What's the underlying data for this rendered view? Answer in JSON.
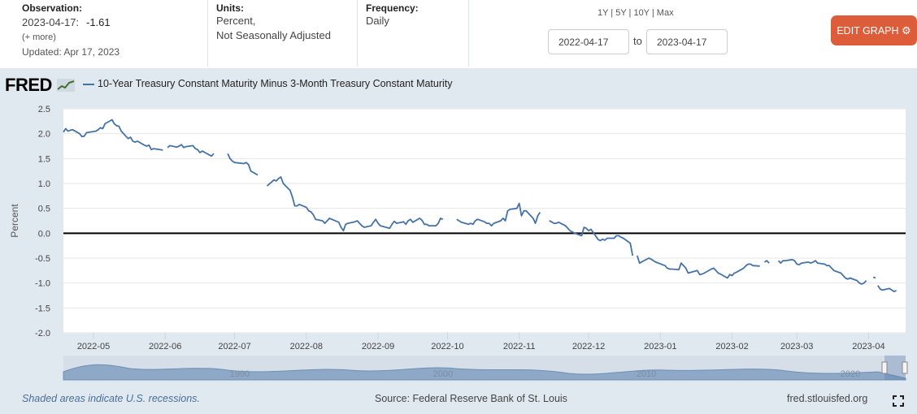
{
  "observation": {
    "label": "Observation:",
    "date": "2023-04-17:",
    "value": "-1.61",
    "more": "(+ more)",
    "updated": "Updated: Apr 17, 2023"
  },
  "units": {
    "label": "Units:",
    "line1": "Percent,",
    "line2": "Not Seasonally Adjusted"
  },
  "frequency": {
    "label": "Frequency:",
    "value": "Daily"
  },
  "range_links": "1Y | 5Y | 10Y | Max",
  "date_range": {
    "start": "2022-04-17",
    "to": "to",
    "end": "2023-04-17"
  },
  "edit_button": "EDIT GRAPH",
  "logo": "FRED",
  "colors": {
    "series": "#4572a7",
    "button": "#dd5d3b",
    "chart_bg": "#e1e9f0"
  },
  "footer": {
    "recession_note": "Shaded areas indicate U.S. recessions.",
    "source": "Source: Federal Reserve Bank of St. Louis",
    "site": "fred.stlouisfed.org"
  },
  "navigator_years": [
    "1990",
    "2000",
    "2010",
    "2020"
  ],
  "chart_data": {
    "type": "line",
    "title": "",
    "xlabel": "",
    "ylabel": "Percent",
    "ylim": [
      -2.0,
      2.5
    ],
    "yticks": [
      "2.5",
      "2.0",
      "1.5",
      "1.0",
      "0.5",
      "0.0",
      "-0.5",
      "-1.0",
      "-1.5",
      "-2.0"
    ],
    "xticks": [
      "2022-05",
      "2022-06",
      "2022-07",
      "2022-08",
      "2022-09",
      "2022-10",
      "2022-11",
      "2022-12",
      "2023-01",
      "2023-02",
      "2023-03",
      "2023-04"
    ],
    "xlim": [
      "2022-04-18",
      "2023-04-17"
    ],
    "zero_line": true,
    "legend": "top-left",
    "series": [
      {
        "name": "10-Year Treasury Constant Maturity Minus 3-Month Treasury Constant Maturity",
        "segments": [
          [
            [
              "2022-04-18",
              2.03
            ],
            [
              "2022-04-19",
              2.1
            ],
            [
              "2022-04-20",
              2.05
            ],
            [
              "2022-04-21",
              2.07
            ],
            [
              "2022-04-22",
              2.08
            ],
            [
              "2022-04-25",
              2.0
            ],
            [
              "2022-04-26",
              1.94
            ],
            [
              "2022-04-27",
              1.95
            ],
            [
              "2022-04-28",
              2.02
            ],
            [
              "2022-05-02",
              2.05
            ],
            [
              "2022-05-03",
              2.08
            ],
            [
              "2022-05-04",
              2.12
            ],
            [
              "2022-05-05",
              2.1
            ],
            [
              "2022-05-06",
              2.2
            ],
            [
              "2022-05-09",
              2.28
            ],
            [
              "2022-05-10",
              2.2
            ],
            [
              "2022-05-11",
              2.16
            ],
            [
              "2022-05-12",
              2.15
            ],
            [
              "2022-05-13",
              2.05
            ],
            [
              "2022-05-16",
              1.9
            ],
            [
              "2022-05-17",
              1.93
            ],
            [
              "2022-05-18",
              1.85
            ],
            [
              "2022-05-19",
              1.83
            ],
            [
              "2022-05-20",
              1.85
            ],
            [
              "2022-05-23",
              1.77
            ],
            [
              "2022-05-24",
              1.75
            ],
            [
              "2022-05-25",
              1.77
            ],
            [
              "2022-05-26",
              1.68
            ],
            [
              "2022-05-27",
              1.7
            ],
            [
              "2022-05-31",
              1.67
            ]
          ],
          [
            [
              "2022-06-02",
              1.72
            ],
            [
              "2022-06-03",
              1.76
            ],
            [
              "2022-06-06",
              1.73
            ],
            [
              "2022-06-07",
              1.75
            ],
            [
              "2022-06-08",
              1.78
            ],
            [
              "2022-06-09",
              1.72
            ],
            [
              "2022-06-10",
              1.74
            ],
            [
              "2022-06-13",
              1.76
            ],
            [
              "2022-06-14",
              1.7
            ],
            [
              "2022-06-15",
              1.68
            ],
            [
              "2022-06-16",
              1.62
            ],
            [
              "2022-06-17",
              1.65
            ],
            [
              "2022-06-21",
              1.55
            ],
            [
              "2022-06-22",
              1.6
            ]
          ],
          [
            [
              "2022-06-28",
              1.6
            ],
            [
              "2022-06-29",
              1.5
            ],
            [
              "2022-06-30",
              1.45
            ],
            [
              "2022-07-01",
              1.42
            ],
            [
              "2022-07-05",
              1.4
            ],
            [
              "2022-07-06",
              1.42
            ],
            [
              "2022-07-07",
              1.38
            ],
            [
              "2022-07-08",
              1.25
            ],
            [
              "2022-07-11",
              1.17
            ]
          ],
          [
            [
              "2022-07-15",
              0.95
            ],
            [
              "2022-07-18",
              1.07
            ],
            [
              "2022-07-19",
              1.05
            ],
            [
              "2022-07-20",
              1.1
            ],
            [
              "2022-07-21",
              1.13
            ],
            [
              "2022-07-22",
              1.0
            ],
            [
              "2022-07-25",
              0.86
            ],
            [
              "2022-07-26",
              0.72
            ],
            [
              "2022-07-27",
              0.55
            ],
            [
              "2022-07-28",
              0.55
            ],
            [
              "2022-07-29",
              0.58
            ],
            [
              "2022-08-01",
              0.52
            ],
            [
              "2022-08-02",
              0.45
            ],
            [
              "2022-08-03",
              0.43
            ],
            [
              "2022-08-04",
              0.37
            ],
            [
              "2022-08-05",
              0.28
            ],
            [
              "2022-08-08",
              0.25
            ],
            [
              "2022-08-09",
              0.2
            ],
            [
              "2022-08-10",
              0.25
            ],
            [
              "2022-08-11",
              0.3
            ],
            [
              "2022-08-12",
              0.28
            ],
            [
              "2022-08-15",
              0.22
            ],
            [
              "2022-08-16",
              0.12
            ],
            [
              "2022-08-17",
              0.05
            ],
            [
              "2022-08-18",
              0.18
            ],
            [
              "2022-08-19",
              0.2
            ],
            [
              "2022-08-22",
              0.23
            ],
            [
              "2022-08-23",
              0.25
            ],
            [
              "2022-08-24",
              0.2
            ],
            [
              "2022-08-25",
              0.15
            ],
            [
              "2022-08-26",
              0.12
            ],
            [
              "2022-08-29",
              0.15
            ],
            [
              "2022-08-30",
              0.22
            ],
            [
              "2022-08-31",
              0.28
            ],
            [
              "2022-09-01",
              0.2
            ],
            [
              "2022-09-02",
              0.15
            ],
            [
              "2022-09-06",
              0.1
            ],
            [
              "2022-09-07",
              0.18
            ],
            [
              "2022-09-08",
              0.24
            ],
            [
              "2022-09-09",
              0.2
            ],
            [
              "2022-09-12",
              0.23
            ],
            [
              "2022-09-13",
              0.18
            ],
            [
              "2022-09-14",
              0.25
            ],
            [
              "2022-09-15",
              0.28
            ],
            [
              "2022-09-16",
              0.22
            ],
            [
              "2022-09-19",
              0.3
            ],
            [
              "2022-09-20",
              0.26
            ],
            [
              "2022-09-21",
              0.18
            ],
            [
              "2022-09-22",
              0.18
            ],
            [
              "2022-09-23",
              0.15
            ],
            [
              "2022-09-26",
              0.15
            ],
            [
              "2022-09-27",
              0.2
            ],
            [
              "2022-09-28",
              0.3
            ],
            [
              "2022-09-29",
              0.28
            ]
          ],
          [
            [
              "2022-10-05",
              0.28
            ],
            [
              "2022-10-06",
              0.25
            ],
            [
              "2022-10-07",
              0.22
            ],
            [
              "2022-10-10",
              0.18
            ],
            [
              "2022-10-11",
              0.2
            ],
            [
              "2022-10-12",
              0.18
            ],
            [
              "2022-10-13",
              0.25
            ],
            [
              "2022-10-14",
              0.28
            ],
            [
              "2022-10-17",
              0.23
            ],
            [
              "2022-10-18",
              0.2
            ],
            [
              "2022-10-19",
              0.2
            ],
            [
              "2022-10-20",
              0.15
            ],
            [
              "2022-10-21",
              0.2
            ],
            [
              "2022-10-24",
              0.25
            ],
            [
              "2022-10-25",
              0.3
            ],
            [
              "2022-10-26",
              0.25
            ],
            [
              "2022-10-27",
              0.45
            ],
            [
              "2022-10-28",
              0.48
            ],
            [
              "2022-10-31",
              0.5
            ],
            [
              "2022-11-01",
              0.6
            ],
            [
              "2022-11-02",
              0.35
            ],
            [
              "2022-11-03",
              0.45
            ],
            [
              "2022-11-04",
              0.45
            ],
            [
              "2022-11-07",
              0.3
            ],
            [
              "2022-11-08",
              0.2
            ],
            [
              "2022-11-09",
              0.35
            ],
            [
              "2022-11-10",
              0.42
            ]
          ],
          [
            [
              "2022-11-14",
              0.25
            ],
            [
              "2022-11-15",
              0.23
            ],
            [
              "2022-11-16",
              0.2
            ],
            [
              "2022-11-17",
              0.2
            ],
            [
              "2022-11-18",
              0.22
            ],
            [
              "2022-11-21",
              0.15
            ],
            [
              "2022-11-22",
              0.1
            ],
            [
              "2022-11-23",
              0.05
            ],
            [
              "2022-11-25",
              0.0
            ],
            [
              "2022-11-28",
              -0.05
            ],
            [
              "2022-11-29",
              0.12
            ],
            [
              "2022-11-30",
              0.1
            ],
            [
              "2022-12-01",
              0.05
            ],
            [
              "2022-12-02",
              0.08
            ],
            [
              "2022-12-05",
              -0.12
            ],
            [
              "2022-12-06",
              -0.15
            ],
            [
              "2022-12-07",
              -0.12
            ],
            [
              "2022-12-08",
              -0.14
            ],
            [
              "2022-12-09",
              -0.1
            ],
            [
              "2022-12-12",
              -0.1
            ],
            [
              "2022-12-13",
              -0.05
            ],
            [
              "2022-12-14",
              -0.05
            ],
            [
              "2022-12-15",
              -0.08
            ],
            [
              "2022-12-16",
              -0.1
            ],
            [
              "2022-12-19",
              -0.2
            ],
            [
              "2022-12-20",
              -0.45
            ]
          ],
          [
            [
              "2022-12-22",
              -0.45
            ],
            [
              "2022-12-23",
              -0.6
            ],
            [
              "2022-12-27",
              -0.5
            ],
            [
              "2022-12-28",
              -0.52
            ],
            [
              "2022-12-29",
              -0.55
            ],
            [
              "2022-12-30",
              -0.58
            ],
            [
              "2023-01-03",
              -0.65
            ],
            [
              "2023-01-04",
              -0.7
            ],
            [
              "2023-01-05",
              -0.72
            ],
            [
              "2023-01-06",
              -0.72
            ],
            [
              "2023-01-09",
              -0.73
            ],
            [
              "2023-01-10",
              -0.6
            ],
            [
              "2023-01-11",
              -0.65
            ],
            [
              "2023-01-12",
              -0.7
            ],
            [
              "2023-01-13",
              -0.8
            ],
            [
              "2023-01-17",
              -0.75
            ],
            [
              "2023-01-18",
              -0.83
            ],
            [
              "2023-01-19",
              -0.82
            ],
            [
              "2023-01-20",
              -0.8
            ],
            [
              "2023-01-23",
              -0.72
            ],
            [
              "2023-01-24",
              -0.7
            ],
            [
              "2023-01-25",
              -0.75
            ],
            [
              "2023-01-26",
              -0.8
            ],
            [
              "2023-01-27",
              -0.82
            ],
            [
              "2023-01-30",
              -0.9
            ],
            [
              "2023-01-31",
              -0.83
            ],
            [
              "2023-02-01",
              -0.85
            ],
            [
              "2023-02-02",
              -0.8
            ],
            [
              "2023-02-03",
              -0.78
            ],
            [
              "2023-02-06",
              -0.7
            ],
            [
              "2023-02-07",
              -0.65
            ],
            [
              "2023-02-08",
              -0.62
            ],
            [
              "2023-02-09",
              -0.62
            ],
            [
              "2023-02-10",
              -0.65
            ],
            [
              "2023-02-13",
              -0.66
            ]
          ],
          [
            [
              "2023-02-15",
              -0.58
            ],
            [
              "2023-02-16",
              -0.55
            ],
            [
              "2023-02-17",
              -0.6
            ]
          ],
          [
            [
              "2023-02-21",
              -0.55
            ],
            [
              "2023-02-22",
              -0.6
            ],
            [
              "2023-02-23",
              -0.55
            ],
            [
              "2023-02-24",
              -0.55
            ],
            [
              "2023-02-27",
              -0.53
            ],
            [
              "2023-02-28",
              -0.55
            ],
            [
              "2023-03-01",
              -0.62
            ],
            [
              "2023-03-02",
              -0.63
            ],
            [
              "2023-03-03",
              -0.6
            ],
            [
              "2023-03-06",
              -0.58
            ],
            [
              "2023-03-07",
              -0.6
            ],
            [
              "2023-03-08",
              -0.58
            ],
            [
              "2023-03-09",
              -0.55
            ],
            [
              "2023-03-10",
              -0.6
            ],
            [
              "2023-03-13",
              -0.62
            ],
            [
              "2023-03-14",
              -0.65
            ],
            [
              "2023-03-15",
              -0.65
            ],
            [
              "2023-03-16",
              -0.7
            ],
            [
              "2023-03-17",
              -0.75
            ],
            [
              "2023-03-20",
              -0.8
            ],
            [
              "2023-03-21",
              -0.85
            ],
            [
              "2023-03-22",
              -0.9
            ],
            [
              "2023-03-23",
              -0.92
            ],
            [
              "2023-03-24",
              -0.9
            ],
            [
              "2023-03-27",
              -0.95
            ],
            [
              "2023-03-28",
              -1.0
            ],
            [
              "2023-03-29",
              -1.02
            ],
            [
              "2023-03-30",
              -1.0
            ],
            [
              "2023-03-31",
              -0.95
            ]
          ],
          [
            [
              "2023-04-03",
              -0.88
            ],
            [
              "2023-04-04",
              -0.9
            ]
          ],
          [
            [
              "2023-04-05",
              -1.05
            ],
            [
              "2023-04-06",
              -1.12
            ],
            [
              "2023-04-07",
              -1.14
            ],
            [
              "2023-04-10",
              -1.11
            ],
            [
              "2023-04-11",
              -1.14
            ],
            [
              "2023-04-12",
              -1.17
            ],
            [
              "2023-04-13",
              -1.15
            ]
          ]
        ]
      }
    ]
  }
}
